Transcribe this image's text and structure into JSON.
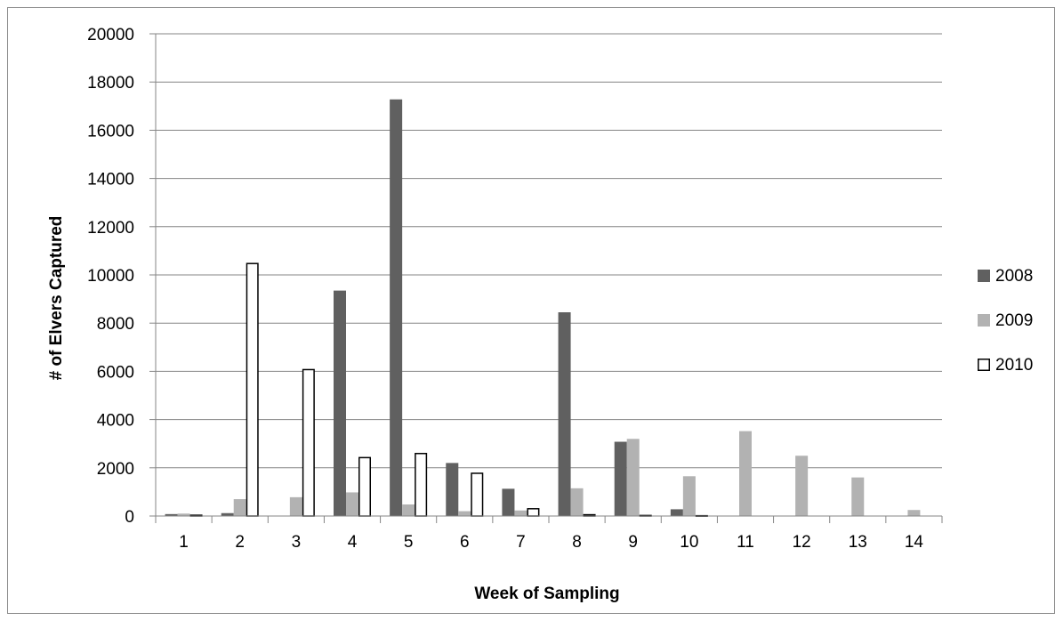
{
  "chart_data": {
    "type": "bar",
    "title": "",
    "xlabel": "Week of Sampling",
    "ylabel": "# of Elvers Captured",
    "ylim": [
      0,
      20000
    ],
    "yticks": [
      0,
      2000,
      4000,
      6000,
      8000,
      10000,
      12000,
      14000,
      16000,
      18000,
      20000
    ],
    "categories": [
      "1",
      "2",
      "3",
      "4",
      "5",
      "6",
      "7",
      "8",
      "9",
      "10",
      "11",
      "12",
      "13",
      "14"
    ],
    "grid": true,
    "legend_position": "right",
    "series": [
      {
        "name": "2008",
        "color": "#606060",
        "stroke": "#606060",
        "values": [
          80,
          120,
          0,
          9350,
          17280,
          2200,
          1130,
          8450,
          3080,
          280,
          0,
          0,
          0,
          0
        ]
      },
      {
        "name": "2009",
        "color": "#b2b2b2",
        "stroke": "#b2b2b2",
        "values": [
          100,
          700,
          780,
          980,
          480,
          200,
          230,
          1150,
          3200,
          1650,
          3520,
          2500,
          1600,
          250
        ]
      },
      {
        "name": "2010",
        "color": "#ffffff",
        "stroke": "#000000",
        "values": [
          60,
          10500,
          6100,
          2450,
          2620,
          1800,
          330,
          80,
          50,
          40,
          0,
          0,
          0,
          0
        ]
      }
    ]
  }
}
